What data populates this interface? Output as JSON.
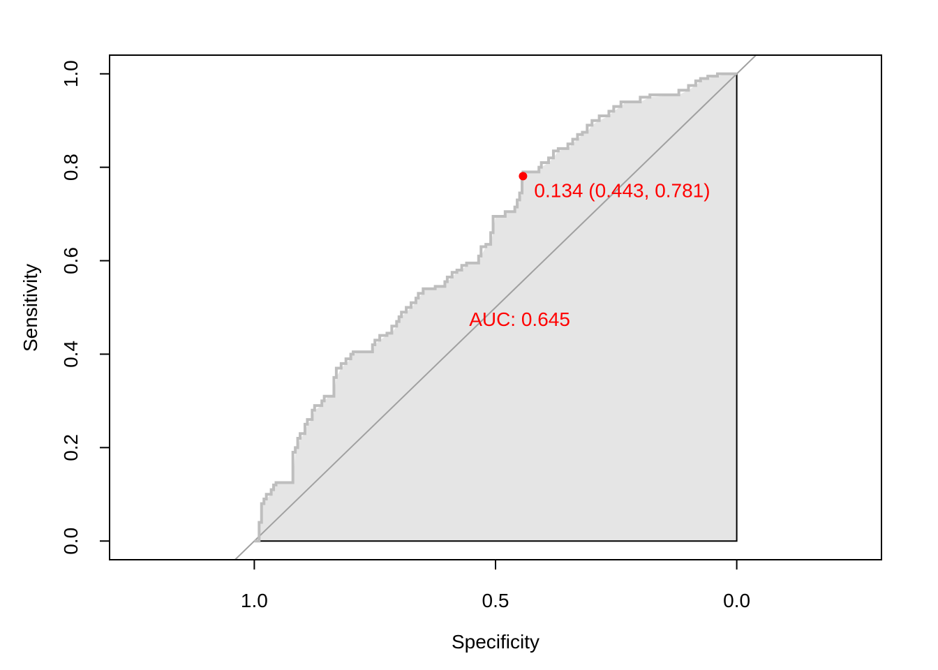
{
  "chart_data": {
    "type": "line",
    "xlabel": "Specificity",
    "ylabel": "Sensitivity",
    "x_reversed": true,
    "xlim": [
      1.3,
      -0.3
    ],
    "ylim": [
      -0.04,
      1.04
    ],
    "x_ticks": [
      {
        "value": 1.0,
        "label": "1.0"
      },
      {
        "value": 0.5,
        "label": "0.5"
      },
      {
        "value": 0.0,
        "label": "0.0"
      }
    ],
    "y_ticks": [
      {
        "value": 0.0,
        "label": "0.0"
      },
      {
        "value": 0.2,
        "label": "0.2"
      },
      {
        "value": 0.4,
        "label": "0.4"
      },
      {
        "value": 0.6,
        "label": "0.6"
      },
      {
        "value": 0.8,
        "label": "0.8"
      },
      {
        "value": 1.0,
        "label": "1.0"
      }
    ],
    "grid": false,
    "series": [
      {
        "color": "#bebebe",
        "fill_color": "#e5e5e5",
        "points": [
          [
            1.0,
            0.0
          ],
          [
            0.99,
            0.0
          ],
          [
            0.99,
            0.03
          ],
          [
            0.985,
            0.04
          ],
          [
            0.985,
            0.07
          ],
          [
            0.98,
            0.08
          ],
          [
            0.975,
            0.09
          ],
          [
            0.965,
            0.1
          ],
          [
            0.96,
            0.11
          ],
          [
            0.955,
            0.12
          ],
          [
            0.945,
            0.125
          ],
          [
            0.92,
            0.125
          ],
          [
            0.915,
            0.19
          ],
          [
            0.91,
            0.2
          ],
          [
            0.905,
            0.22
          ],
          [
            0.895,
            0.23
          ],
          [
            0.89,
            0.25
          ],
          [
            0.88,
            0.26
          ],
          [
            0.875,
            0.28
          ],
          [
            0.86,
            0.29
          ],
          [
            0.855,
            0.3
          ],
          [
            0.845,
            0.31
          ],
          [
            0.835,
            0.31
          ],
          [
            0.83,
            0.35
          ],
          [
            0.82,
            0.37
          ],
          [
            0.81,
            0.38
          ],
          [
            0.8,
            0.39
          ],
          [
            0.795,
            0.4
          ],
          [
            0.78,
            0.405
          ],
          [
            0.755,
            0.405
          ],
          [
            0.75,
            0.42
          ],
          [
            0.74,
            0.43
          ],
          [
            0.725,
            0.44
          ],
          [
            0.715,
            0.445
          ],
          [
            0.705,
            0.46
          ],
          [
            0.7,
            0.47
          ],
          [
            0.695,
            0.48
          ],
          [
            0.685,
            0.49
          ],
          [
            0.675,
            0.5
          ],
          [
            0.665,
            0.51
          ],
          [
            0.66,
            0.52
          ],
          [
            0.65,
            0.53
          ],
          [
            0.645,
            0.54
          ],
          [
            0.625,
            0.54
          ],
          [
            0.62,
            0.545
          ],
          [
            0.605,
            0.545
          ],
          [
            0.6,
            0.555
          ],
          [
            0.59,
            0.565
          ],
          [
            0.58,
            0.575
          ],
          [
            0.57,
            0.58
          ],
          [
            0.56,
            0.59
          ],
          [
            0.55,
            0.595
          ],
          [
            0.535,
            0.595
          ],
          [
            0.53,
            0.61
          ],
          [
            0.52,
            0.63
          ],
          [
            0.51,
            0.635
          ],
          [
            0.505,
            0.66
          ],
          [
            0.5,
            0.695
          ],
          [
            0.48,
            0.695
          ],
          [
            0.475,
            0.705
          ],
          [
            0.46,
            0.705
          ],
          [
            0.455,
            0.715
          ],
          [
            0.45,
            0.73
          ],
          [
            0.445,
            0.745
          ],
          [
            0.443,
            0.781
          ],
          [
            0.43,
            0.79
          ],
          [
            0.41,
            0.79
          ],
          [
            0.405,
            0.8
          ],
          [
            0.39,
            0.81
          ],
          [
            0.38,
            0.82
          ],
          [
            0.37,
            0.835
          ],
          [
            0.35,
            0.84
          ],
          [
            0.34,
            0.85
          ],
          [
            0.33,
            0.86
          ],
          [
            0.32,
            0.87
          ],
          [
            0.31,
            0.875
          ],
          [
            0.3,
            0.89
          ],
          [
            0.285,
            0.9
          ],
          [
            0.265,
            0.91
          ],
          [
            0.255,
            0.92
          ],
          [
            0.24,
            0.93
          ],
          [
            0.23,
            0.94
          ],
          [
            0.2,
            0.94
          ],
          [
            0.18,
            0.95
          ],
          [
            0.12,
            0.955
          ],
          [
            0.1,
            0.965
          ],
          [
            0.085,
            0.975
          ],
          [
            0.075,
            0.985
          ],
          [
            0.06,
            0.99
          ],
          [
            0.04,
            0.995
          ],
          [
            0.02,
            1.0
          ],
          [
            0.0,
            1.0
          ]
        ]
      }
    ],
    "reference_line": {
      "color": "#a0a0a0",
      "points": [
        [
          1.3,
          -0.3
        ],
        [
          -0.3,
          1.3
        ]
      ]
    },
    "threshold_point": {
      "threshold": 0.134,
      "specificity": 0.443,
      "sensitivity": 0.781,
      "color": "#ff0000",
      "label": "0.134 (0.443, 0.781)"
    },
    "auc_annotation": {
      "text": "AUC: 0.645",
      "x": 0.45,
      "y": 0.475,
      "color": "#ff0000"
    }
  }
}
